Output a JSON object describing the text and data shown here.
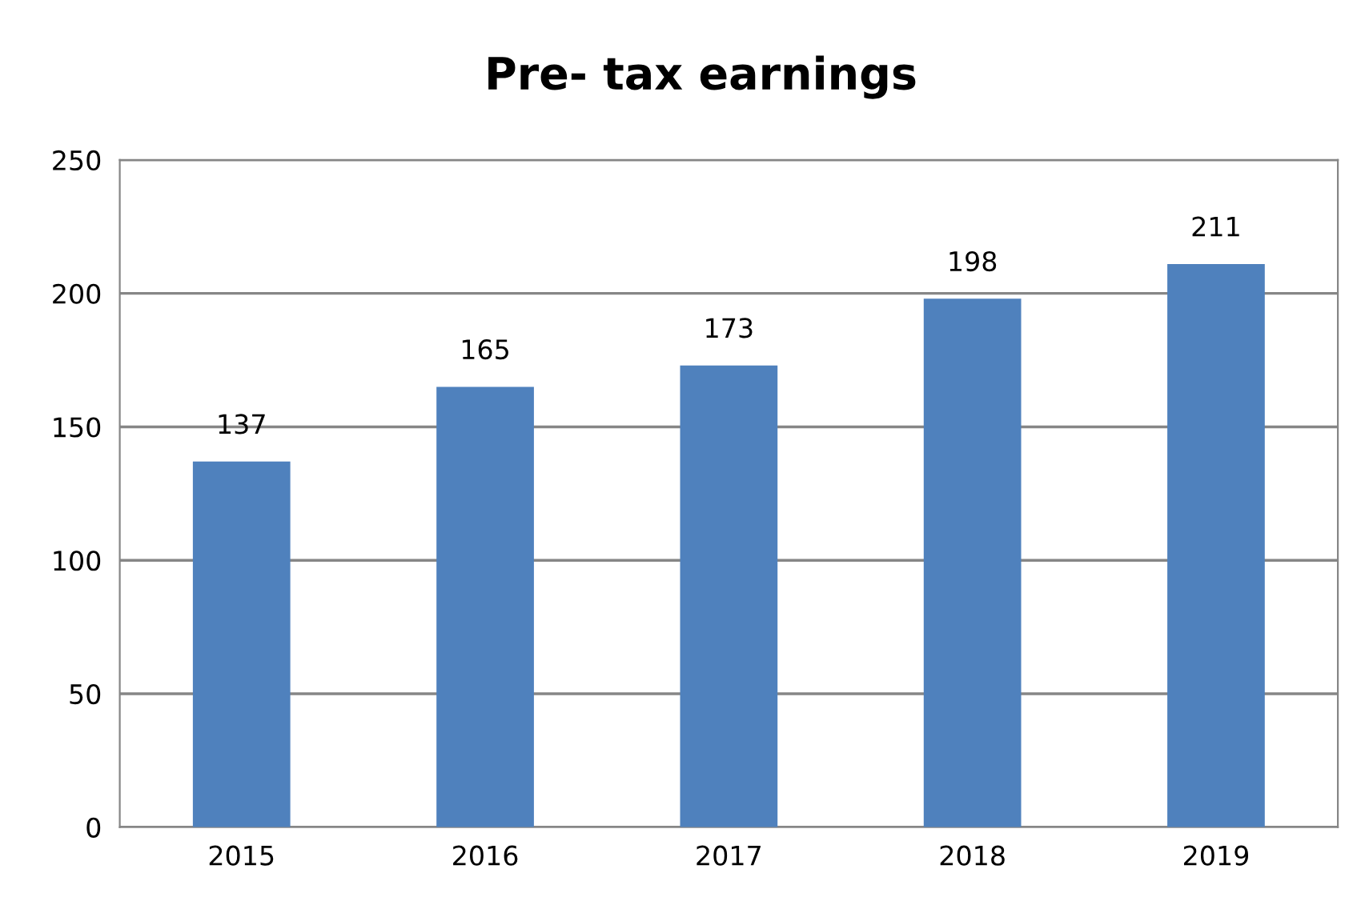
{
  "chart_data": {
    "type": "bar",
    "title": "Pre- tax earnings",
    "categories": [
      "2015",
      "2016",
      "2017",
      "2018",
      "2019"
    ],
    "values": [
      137,
      165,
      173,
      198,
      211
    ],
    "color": "#4f81bd",
    "ylim": [
      0,
      250
    ],
    "yticks": [
      0,
      50,
      100,
      150,
      200,
      250
    ],
    "grid": "y",
    "data_labels": true,
    "legend": false
  }
}
